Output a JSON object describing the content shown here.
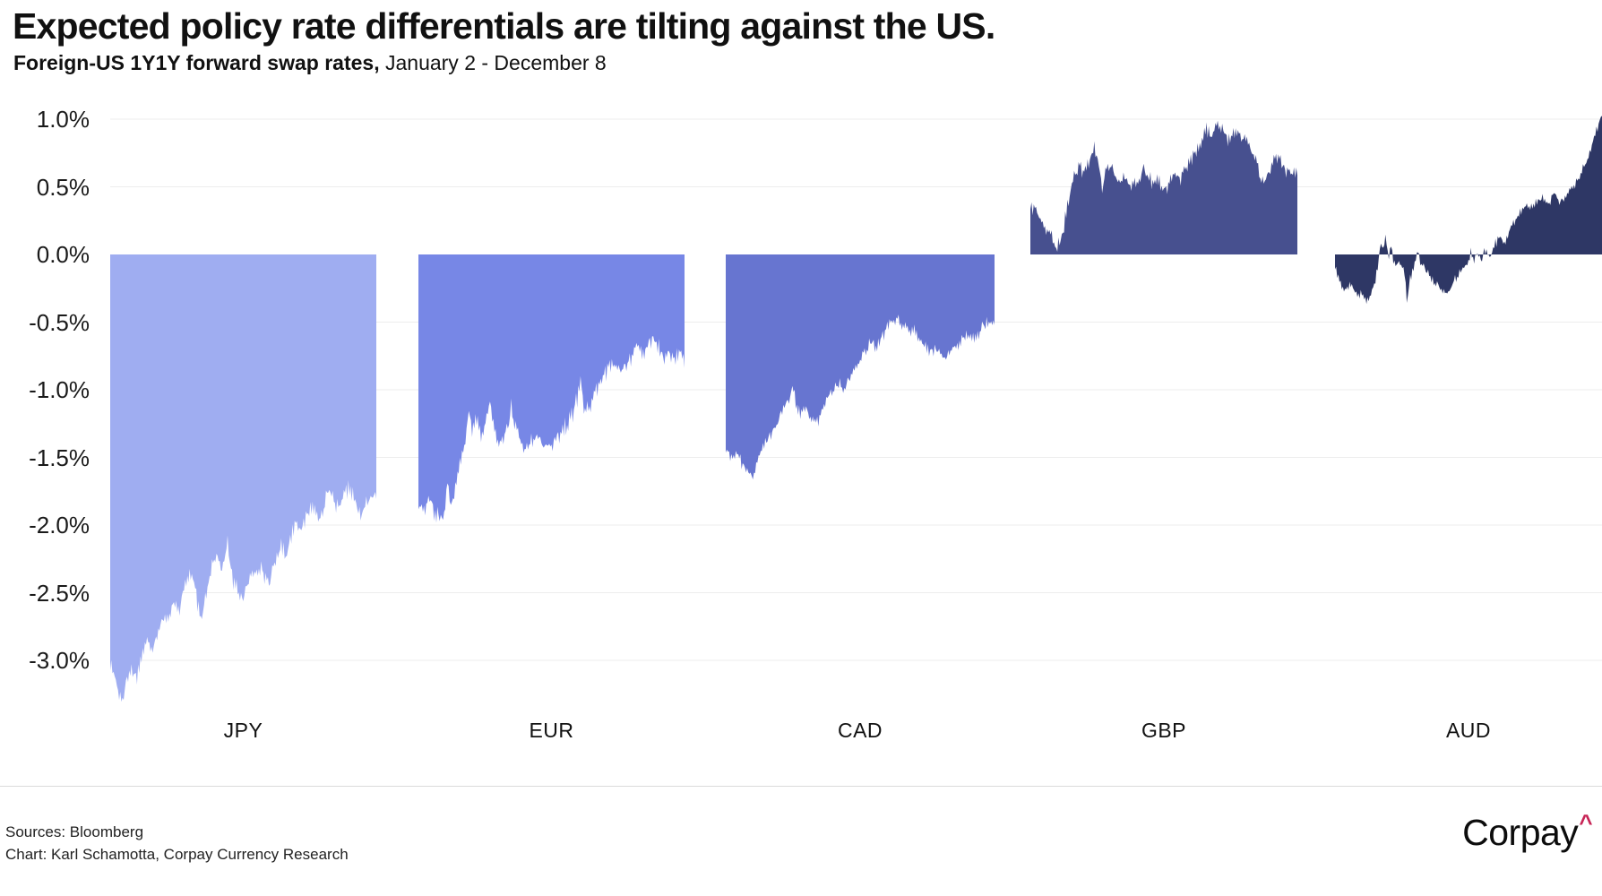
{
  "title": "Expected policy rate differentials are tilting against the US.",
  "subtitle_bold": "Foreign-US 1Y1Y forward swap rates,",
  "subtitle_rest": " January 2 - December 8",
  "y_axis": {
    "labels": [
      "1.0%",
      "0.5%",
      "0.0%",
      "-0.5%",
      "-1.0%",
      "-1.5%",
      "-2.0%",
      "-2.5%",
      "-3.0%"
    ],
    "values": [
      1.0,
      0.5,
      0.0,
      -0.5,
      -1.0,
      -1.5,
      -2.0,
      -2.5,
      -3.0
    ]
  },
  "footer": {
    "sources": "Sources: Bloomberg",
    "credit": "Chart: Karl Schamotta, Corpay Currency Research",
    "logo_text": "Corpay",
    "logo_caret": "^",
    "logo_caret_color": "#c72556"
  },
  "chart_data": {
    "type": "area",
    "unit": "percent",
    "title": "Foreign-US 1Y1Y forward swap rate differentials",
    "x_range_label": "January 2 - December 8",
    "ylim": [
      -3.5,
      1.1
    ],
    "grid": true,
    "gridlines": [
      1.0,
      0.5,
      -0.5,
      -1.0,
      -1.5,
      -2.0,
      -2.5,
      -3.0
    ],
    "baseline": 0.0,
    "series": [
      {
        "name": "JPY",
        "color": "#9fadf1",
        "daily_noise": 0.045,
        "keypoints": [
          [
            0,
            -3.03
          ],
          [
            0.015,
            -3.1
          ],
          [
            0.03,
            -3.22
          ],
          [
            0.045,
            -3.3
          ],
          [
            0.06,
            -3.15
          ],
          [
            0.08,
            -3.07
          ],
          [
            0.1,
            -3.12
          ],
          [
            0.12,
            -2.95
          ],
          [
            0.14,
            -2.86
          ],
          [
            0.16,
            -2.9
          ],
          [
            0.18,
            -2.77
          ],
          [
            0.2,
            -2.67
          ],
          [
            0.22,
            -2.72
          ],
          [
            0.24,
            -2.55
          ],
          [
            0.26,
            -2.62
          ],
          [
            0.28,
            -2.45
          ],
          [
            0.3,
            -2.35
          ],
          [
            0.32,
            -2.48
          ],
          [
            0.34,
            -2.73
          ],
          [
            0.36,
            -2.5
          ],
          [
            0.38,
            -2.3
          ],
          [
            0.4,
            -2.2
          ],
          [
            0.42,
            -2.35
          ],
          [
            0.44,
            -2.12
          ],
          [
            0.46,
            -2.42
          ],
          [
            0.48,
            -2.48
          ],
          [
            0.5,
            -2.55
          ],
          [
            0.52,
            -2.42
          ],
          [
            0.54,
            -2.34
          ],
          [
            0.56,
            -2.3
          ],
          [
            0.58,
            -2.38
          ],
          [
            0.6,
            -2.42
          ],
          [
            0.62,
            -2.28
          ],
          [
            0.64,
            -2.15
          ],
          [
            0.66,
            -2.22
          ],
          [
            0.68,
            -2.08
          ],
          [
            0.7,
            -1.95
          ],
          [
            0.72,
            -2.05
          ],
          [
            0.74,
            -1.92
          ],
          [
            0.76,
            -1.85
          ],
          [
            0.78,
            -1.95
          ],
          [
            0.8,
            -1.88
          ],
          [
            0.82,
            -1.75
          ],
          [
            0.84,
            -1.82
          ],
          [
            0.86,
            -1.9
          ],
          [
            0.88,
            -1.78
          ],
          [
            0.9,
            -1.72
          ],
          [
            0.92,
            -1.82
          ],
          [
            0.94,
            -1.95
          ],
          [
            0.96,
            -1.85
          ],
          [
            0.98,
            -1.78
          ],
          [
            1,
            -1.81
          ]
        ]
      },
      {
        "name": "EUR",
        "color": "#7787e6",
        "daily_noise": 0.05,
        "keypoints": [
          [
            0,
            -1.84
          ],
          [
            0.02,
            -1.88
          ],
          [
            0.04,
            -1.8
          ],
          [
            0.06,
            -1.9
          ],
          [
            0.08,
            -1.96
          ],
          [
            0.1,
            -1.9
          ],
          [
            0.11,
            -1.62
          ],
          [
            0.12,
            -1.85
          ],
          [
            0.14,
            -1.72
          ],
          [
            0.16,
            -1.48
          ],
          [
            0.18,
            -1.35
          ],
          [
            0.19,
            -1.12
          ],
          [
            0.2,
            -1.3
          ],
          [
            0.22,
            -1.2
          ],
          [
            0.24,
            -1.35
          ],
          [
            0.26,
            -1.18
          ],
          [
            0.27,
            -1.05
          ],
          [
            0.28,
            -1.25
          ],
          [
            0.3,
            -1.4
          ],
          [
            0.32,
            -1.34
          ],
          [
            0.34,
            -1.28
          ],
          [
            0.35,
            -1.1
          ],
          [
            0.36,
            -1.25
          ],
          [
            0.38,
            -1.38
          ],
          [
            0.4,
            -1.43
          ],
          [
            0.42,
            -1.38
          ],
          [
            0.44,
            -1.32
          ],
          [
            0.46,
            -1.38
          ],
          [
            0.48,
            -1.43
          ],
          [
            0.5,
            -1.4
          ],
          [
            0.52,
            -1.35
          ],
          [
            0.54,
            -1.3
          ],
          [
            0.56,
            -1.25
          ],
          [
            0.58,
            -1.17
          ],
          [
            0.6,
            -1.05
          ],
          [
            0.61,
            -0.96
          ],
          [
            0.62,
            -1.1
          ],
          [
            0.64,
            -1.15
          ],
          [
            0.66,
            -1.05
          ],
          [
            0.68,
            -0.98
          ],
          [
            0.7,
            -0.9
          ],
          [
            0.72,
            -0.83
          ],
          [
            0.74,
            -0.78
          ],
          [
            0.76,
            -0.85
          ],
          [
            0.78,
            -0.8
          ],
          [
            0.8,
            -0.75
          ],
          [
            0.82,
            -0.7
          ],
          [
            0.84,
            -0.73
          ],
          [
            0.86,
            -0.68
          ],
          [
            0.88,
            -0.6
          ],
          [
            0.9,
            -0.67
          ],
          [
            0.92,
            -0.75
          ],
          [
            0.94,
            -0.71
          ],
          [
            0.96,
            -0.78
          ],
          [
            0.98,
            -0.74
          ],
          [
            1,
            -0.79
          ]
        ]
      },
      {
        "name": "CAD",
        "color": "#6775d0",
        "daily_noise": 0.035,
        "keypoints": [
          [
            0,
            -1.44
          ],
          [
            0.02,
            -1.5
          ],
          [
            0.04,
            -1.46
          ],
          [
            0.06,
            -1.55
          ],
          [
            0.08,
            -1.6
          ],
          [
            0.1,
            -1.64
          ],
          [
            0.12,
            -1.52
          ],
          [
            0.14,
            -1.42
          ],
          [
            0.16,
            -1.35
          ],
          [
            0.18,
            -1.28
          ],
          [
            0.2,
            -1.2
          ],
          [
            0.22,
            -1.12
          ],
          [
            0.24,
            -1.05
          ],
          [
            0.25,
            -0.96
          ],
          [
            0.26,
            -1.1
          ],
          [
            0.28,
            -1.18
          ],
          [
            0.3,
            -1.12
          ],
          [
            0.32,
            -1.22
          ],
          [
            0.34,
            -1.25
          ],
          [
            0.36,
            -1.15
          ],
          [
            0.38,
            -1.05
          ],
          [
            0.4,
            -1.0
          ],
          [
            0.42,
            -0.95
          ],
          [
            0.44,
            -0.98
          ],
          [
            0.46,
            -0.9
          ],
          [
            0.48,
            -0.85
          ],
          [
            0.5,
            -0.78
          ],
          [
            0.52,
            -0.72
          ],
          [
            0.54,
            -0.65
          ],
          [
            0.56,
            -0.68
          ],
          [
            0.58,
            -0.62
          ],
          [
            0.6,
            -0.55
          ],
          [
            0.62,
            -0.5
          ],
          [
            0.64,
            -0.48
          ],
          [
            0.66,
            -0.52
          ],
          [
            0.68,
            -0.58
          ],
          [
            0.7,
            -0.55
          ],
          [
            0.72,
            -0.62
          ],
          [
            0.74,
            -0.68
          ],
          [
            0.76,
            -0.72
          ],
          [
            0.78,
            -0.7
          ],
          [
            0.8,
            -0.75
          ],
          [
            0.82,
            -0.78
          ],
          [
            0.84,
            -0.72
          ],
          [
            0.86,
            -0.68
          ],
          [
            0.88,
            -0.62
          ],
          [
            0.9,
            -0.58
          ],
          [
            0.92,
            -0.62
          ],
          [
            0.94,
            -0.58
          ],
          [
            0.96,
            -0.52
          ],
          [
            0.98,
            -0.48
          ],
          [
            1,
            -0.52
          ]
        ]
      },
      {
        "name": "GBP",
        "color": "#47508f",
        "daily_noise": 0.04,
        "clamp_min": 0.02,
        "keypoints": [
          [
            0,
            0.36
          ],
          [
            0.02,
            0.32
          ],
          [
            0.04,
            0.25
          ],
          [
            0.06,
            0.18
          ],
          [
            0.08,
            0.12
          ],
          [
            0.1,
            0.05
          ],
          [
            0.12,
            0.15
          ],
          [
            0.14,
            0.38
          ],
          [
            0.16,
            0.55
          ],
          [
            0.18,
            0.65
          ],
          [
            0.2,
            0.6
          ],
          [
            0.22,
            0.7
          ],
          [
            0.24,
            0.8
          ],
          [
            0.26,
            0.62
          ],
          [
            0.27,
            0.45
          ],
          [
            0.28,
            0.6
          ],
          [
            0.3,
            0.66
          ],
          [
            0.32,
            0.58
          ],
          [
            0.34,
            0.52
          ],
          [
            0.35,
            0.62
          ],
          [
            0.36,
            0.55
          ],
          [
            0.38,
            0.48
          ],
          [
            0.4,
            0.55
          ],
          [
            0.42,
            0.62
          ],
          [
            0.44,
            0.58
          ],
          [
            0.46,
            0.52
          ],
          [
            0.48,
            0.55
          ],
          [
            0.5,
            0.48
          ],
          [
            0.52,
            0.52
          ],
          [
            0.54,
            0.58
          ],
          [
            0.56,
            0.55
          ],
          [
            0.58,
            0.62
          ],
          [
            0.6,
            0.68
          ],
          [
            0.62,
            0.75
          ],
          [
            0.64,
            0.85
          ],
          [
            0.66,
            0.92
          ],
          [
            0.68,
            0.88
          ],
          [
            0.7,
            0.96
          ],
          [
            0.72,
            0.92
          ],
          [
            0.74,
            0.85
          ],
          [
            0.76,
            0.88
          ],
          [
            0.78,
            0.92
          ],
          [
            0.8,
            0.85
          ],
          [
            0.82,
            0.78
          ],
          [
            0.84,
            0.72
          ],
          [
            0.86,
            0.58
          ],
          [
            0.88,
            0.55
          ],
          [
            0.9,
            0.65
          ],
          [
            0.92,
            0.72
          ],
          [
            0.94,
            0.68
          ],
          [
            0.96,
            0.62
          ],
          [
            0.98,
            0.58
          ],
          [
            1,
            0.63
          ]
        ]
      },
      {
        "name": "AUD",
        "color": "#2e3765",
        "daily_noise": 0.025,
        "keypoints": [
          [
            0,
            -0.1
          ],
          [
            0.02,
            -0.22
          ],
          [
            0.04,
            -0.26
          ],
          [
            0.06,
            -0.22
          ],
          [
            0.08,
            -0.28
          ],
          [
            0.1,
            -0.3
          ],
          [
            0.12,
            -0.34
          ],
          [
            0.14,
            -0.28
          ],
          [
            0.16,
            -0.1
          ],
          [
            0.17,
            0.1
          ],
          [
            0.18,
            0.05
          ],
          [
            0.19,
            0.12
          ],
          [
            0.2,
            -0.05
          ],
          [
            0.21,
            0.08
          ],
          [
            0.22,
            -0.08
          ],
          [
            0.24,
            -0.05
          ],
          [
            0.26,
            -0.12
          ],
          [
            0.27,
            -0.35
          ],
          [
            0.28,
            -0.18
          ],
          [
            0.3,
            -0.08
          ],
          [
            0.31,
            0.05
          ],
          [
            0.32,
            -0.1
          ],
          [
            0.33,
            -0.05
          ],
          [
            0.34,
            -0.12
          ],
          [
            0.36,
            -0.18
          ],
          [
            0.38,
            -0.22
          ],
          [
            0.4,
            -0.25
          ],
          [
            0.42,
            -0.28
          ],
          [
            0.44,
            -0.22
          ],
          [
            0.46,
            -0.15
          ],
          [
            0.48,
            -0.1
          ],
          [
            0.5,
            -0.05
          ],
          [
            0.51,
            0.03
          ],
          [
            0.52,
            -0.04
          ],
          [
            0.54,
            0.02
          ],
          [
            0.55,
            -0.06
          ],
          [
            0.56,
            0.04
          ],
          [
            0.58,
            -0.02
          ],
          [
            0.6,
            0.08
          ],
          [
            0.62,
            0.12
          ],
          [
            0.64,
            0.1
          ],
          [
            0.66,
            0.2
          ],
          [
            0.68,
            0.28
          ],
          [
            0.7,
            0.33
          ],
          [
            0.72,
            0.38
          ],
          [
            0.74,
            0.35
          ],
          [
            0.76,
            0.4
          ],
          [
            0.78,
            0.42
          ],
          [
            0.8,
            0.38
          ],
          [
            0.82,
            0.45
          ],
          [
            0.84,
            0.4
          ],
          [
            0.86,
            0.42
          ],
          [
            0.88,
            0.48
          ],
          [
            0.9,
            0.52
          ],
          [
            0.92,
            0.6
          ],
          [
            0.94,
            0.68
          ],
          [
            0.96,
            0.8
          ],
          [
            0.98,
            0.92
          ],
          [
            1,
            1.03
          ]
        ]
      }
    ]
  }
}
